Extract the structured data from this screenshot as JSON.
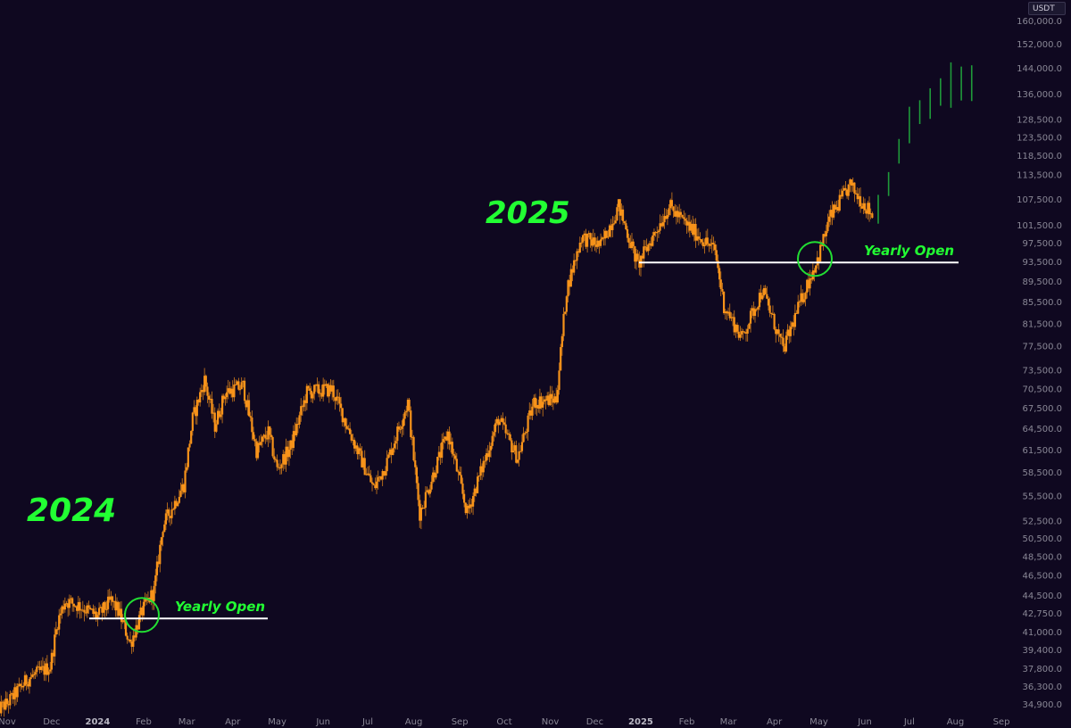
{
  "currency": "USDT",
  "colors": {
    "background": "#0f0820",
    "candle": "#f7931a",
    "projection": "#1f9a3a",
    "highlight": "#22ff33",
    "line": "#ffffff",
    "axis_text": "#8a8896"
  },
  "annotations": {
    "year_2024": "2024",
    "year_2025": "2025",
    "yearly_open_2024": "Yearly Open",
    "yearly_open_2025": "Yearly Open"
  },
  "chart_data": {
    "type": "candlestick",
    "title": "",
    "y_scale": "log",
    "ylim": [
      34000,
      165000
    ],
    "y_ticks": [
      "160,000.0",
      "152,000.0",
      "144,000.0",
      "136,000.0",
      "128,500.0",
      "123,500.0",
      "118,500.0",
      "113,500.0",
      "107,500.0",
      "101,500.0",
      "97,500.0",
      "93,500.0",
      "89,500.0",
      "85,500.0",
      "81,500.0",
      "77,500.0",
      "73,500.0",
      "70,500.0",
      "67,500.0",
      "64,500.0",
      "61,500.0",
      "58,500.0",
      "55,500.0",
      "52,500.0",
      "50,500.0",
      "48,500.0",
      "46,500.0",
      "44,500.0",
      "42,750.0",
      "41,000.0",
      "39,400.0",
      "37,800.0",
      "36,300.0",
      "34,900.0"
    ],
    "x_ticks": [
      {
        "label": "Nov",
        "date": "2023-11-01",
        "bold": false
      },
      {
        "label": "Dec",
        "date": "2023-12-01",
        "bold": false
      },
      {
        "label": "2024",
        "date": "2024-01-01",
        "bold": true
      },
      {
        "label": "Feb",
        "date": "2024-02-01",
        "bold": false
      },
      {
        "label": "Mar",
        "date": "2024-03-01",
        "bold": false
      },
      {
        "label": "Apr",
        "date": "2024-04-01",
        "bold": false
      },
      {
        "label": "May",
        "date": "2024-05-01",
        "bold": false
      },
      {
        "label": "Jun",
        "date": "2024-06-01",
        "bold": false
      },
      {
        "label": "Jul",
        "date": "2024-07-01",
        "bold": false
      },
      {
        "label": "Aug",
        "date": "2024-08-01",
        "bold": false
      },
      {
        "label": "Sep",
        "date": "2024-09-01",
        "bold": false
      },
      {
        "label": "Oct",
        "date": "2024-10-01",
        "bold": false
      },
      {
        "label": "Nov",
        "date": "2024-11-01",
        "bold": false
      },
      {
        "label": "Dec",
        "date": "2024-12-01",
        "bold": false
      },
      {
        "label": "2025",
        "date": "2025-01-01",
        "bold": true
      },
      {
        "label": "Feb",
        "date": "2025-02-01",
        "bold": false
      },
      {
        "label": "Mar",
        "date": "2025-03-01",
        "bold": false
      },
      {
        "label": "Apr",
        "date": "2025-04-01",
        "bold": false
      },
      {
        "label": "May",
        "date": "2025-05-01",
        "bold": false
      },
      {
        "label": "Jun",
        "date": "2025-06-01",
        "bold": false
      },
      {
        "label": "Jul",
        "date": "2025-07-01",
        "bold": false
      },
      {
        "label": "Aug",
        "date": "2025-08-01",
        "bold": false
      },
      {
        "label": "Sep",
        "date": "2025-09-01",
        "bold": false
      }
    ],
    "price_path": [
      [
        "2023-10-25",
        34500
      ],
      [
        "2023-11-01",
        35000
      ],
      [
        "2023-11-15",
        37000
      ],
      [
        "2023-11-30",
        38000
      ],
      [
        "2023-12-05",
        42000
      ],
      [
        "2023-12-10",
        44000
      ],
      [
        "2023-12-20",
        43500
      ],
      [
        "2024-01-01",
        42500
      ],
      [
        "2024-01-10",
        44000
      ],
      [
        "2024-01-15",
        43000
      ],
      [
        "2024-01-23",
        40000
      ],
      [
        "2024-01-31",
        43000
      ],
      [
        "2024-02-08",
        45000
      ],
      [
        "2024-02-14",
        52000
      ],
      [
        "2024-02-28",
        57000
      ],
      [
        "2024-03-05",
        66000
      ],
      [
        "2024-03-13",
        72000
      ],
      [
        "2024-03-20",
        65000
      ],
      [
        "2024-03-27",
        70000
      ],
      [
        "2024-04-08",
        71000
      ],
      [
        "2024-04-17",
        61500
      ],
      [
        "2024-04-25",
        64000
      ],
      [
        "2024-05-01",
        59000
      ],
      [
        "2024-05-10",
        62000
      ],
      [
        "2024-05-21",
        70000
      ],
      [
        "2024-06-07",
        70500
      ],
      [
        "2024-06-25",
        61000
      ],
      [
        "2024-07-05",
        56500
      ],
      [
        "2024-07-14",
        60000
      ],
      [
        "2024-07-28",
        68500
      ],
      [
        "2024-08-05",
        53500
      ],
      [
        "2024-08-24",
        64000
      ],
      [
        "2024-09-06",
        53500
      ],
      [
        "2024-09-27",
        66000
      ],
      [
        "2024-10-10",
        60500
      ],
      [
        "2024-10-21",
        68500
      ],
      [
        "2024-11-05",
        69000
      ],
      [
        "2024-11-12",
        88000
      ],
      [
        "2024-11-22",
        99000
      ],
      [
        "2024-12-05",
        97000
      ],
      [
        "2024-12-17",
        106000
      ],
      [
        "2024-12-30",
        93000
      ],
      [
        "2025-01-20",
        106000
      ],
      [
        "2025-01-31",
        102000
      ],
      [
        "2025-02-20",
        96000
      ],
      [
        "2025-02-26",
        85000
      ],
      [
        "2025-03-10",
        79000
      ],
      [
        "2025-03-24",
        88000
      ],
      [
        "2025-04-07",
        77000
      ],
      [
        "2025-04-21",
        87500
      ],
      [
        "2025-05-01",
        95000
      ],
      [
        "2025-05-08",
        103000
      ],
      [
        "2025-05-22",
        111000
      ],
      [
        "2025-06-06",
        104000
      ]
    ],
    "projection_path": [
      [
        "2025-06-10",
        105000
      ],
      [
        "2025-06-17",
        111000
      ],
      [
        "2025-06-24",
        119000
      ],
      [
        "2025-07-01",
        127500
      ],
      [
        "2025-07-08",
        130000
      ],
      [
        "2025-07-15",
        134000
      ],
      [
        "2025-07-22",
        137000
      ],
      [
        "2025-07-29",
        140000
      ],
      [
        "2025-08-05",
        138000
      ],
      [
        "2025-08-12",
        141000
      ]
    ],
    "yearly_open_2024": 42300,
    "yearly_open_2025": 93500
  }
}
